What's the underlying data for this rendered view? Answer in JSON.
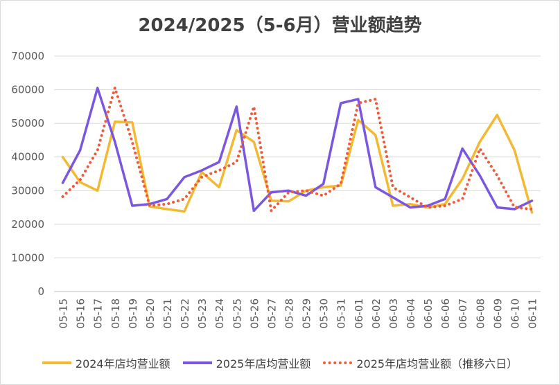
{
  "chart_data": {
    "type": "line",
    "title": "2024/2025（5-6月）营业额趋势",
    "categories": [
      "05-15",
      "05-16",
      "05-17",
      "05-18",
      "05-19",
      "05-20",
      "05-21",
      "05-22",
      "05-23",
      "05-24",
      "05-25",
      "05-26",
      "05-27",
      "05-28",
      "05-29",
      "05-30",
      "05-31",
      "06-01",
      "06-02",
      "06-03",
      "06-04",
      "06-05",
      "06-06",
      "06-07",
      "06-08",
      "06-09",
      "06-10",
      "06-11"
    ],
    "ylim": [
      0,
      70000
    ],
    "yticks": [
      0,
      10000,
      20000,
      30000,
      40000,
      50000,
      60000,
      70000
    ],
    "grid": true,
    "legend": "bottom",
    "series": [
      {
        "name": "2024年店均营业额",
        "color": "#F4B932",
        "style": "solid",
        "values": [
          40000,
          32500,
          30000,
          50500,
          50300,
          25300,
          24500,
          23800,
          35500,
          31000,
          48000,
          44500,
          27000,
          26800,
          30000,
          31000,
          31500,
          51000,
          46500,
          25500,
          26000,
          25000,
          26000,
          33500,
          44500,
          52500,
          42000,
          23500
        ]
      },
      {
        "name": "2025年店均营业额",
        "color": "#7B56E0",
        "style": "solid",
        "values": [
          32300,
          42000,
          60500,
          44500,
          25500,
          26000,
          27500,
          34000,
          36000,
          38500,
          55000,
          24000,
          29500,
          30000,
          28500,
          32000,
          56000,
          57200,
          31000,
          28000,
          25000,
          25500,
          27500,
          42500,
          34500,
          25000,
          24500,
          27000
        ]
      },
      {
        "name": "2025年店均营业额（推移六日）",
        "color": "#EF5A3A",
        "style": "dotted",
        "values": [
          28200,
          33200,
          42000,
          60600,
          44500,
          25500,
          26000,
          27500,
          34000,
          36000,
          38500,
          55000,
          24000,
          29500,
          30000,
          28500,
          32000,
          56000,
          57200,
          31000,
          28000,
          25000,
          25500,
          27500,
          42500,
          34500,
          25000,
          24500
        ]
      }
    ]
  }
}
